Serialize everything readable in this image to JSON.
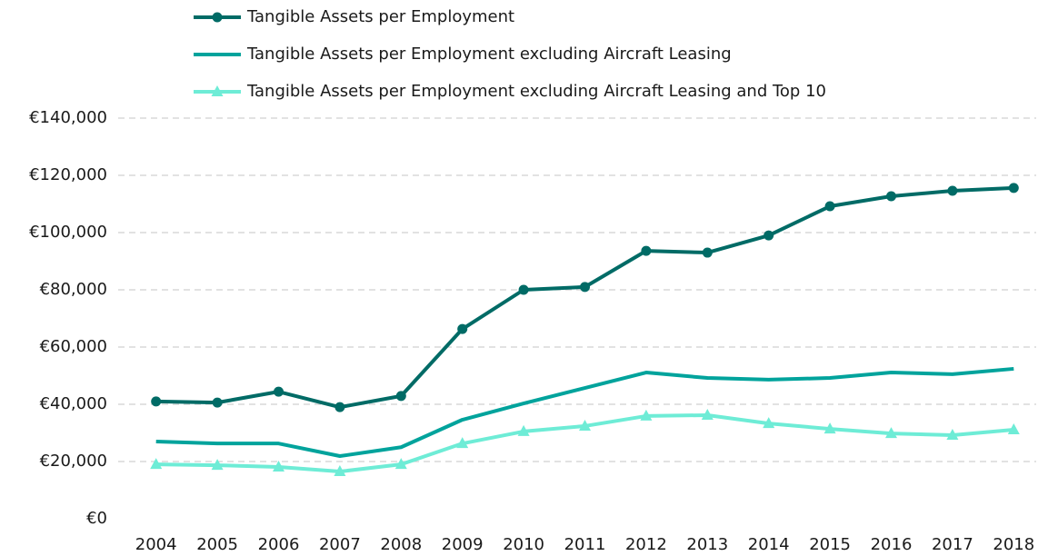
{
  "chart_data": {
    "type": "line",
    "categories": [
      "2004",
      "2005",
      "2006",
      "2007",
      "2008",
      "2009",
      "2010",
      "2011",
      "2012",
      "2013",
      "2014",
      "2015",
      "2016",
      "2017",
      "2018"
    ],
    "series": [
      {
        "name": "Tangible Assets per Employment",
        "color": "#006b66",
        "marker": "circle",
        "values": [
          41000,
          40600,
          44400,
          39000,
          42900,
          66300,
          80000,
          81000,
          93600,
          93000,
          99000,
          109200,
          112700,
          114600,
          115600
        ]
      },
      {
        "name": "Tangible Assets per Employment excluding Aircraft Leasing",
        "color": "#00a39c",
        "values": [
          27000,
          26300,
          26300,
          21900,
          25000,
          34600,
          40300,
          45700,
          51100,
          49200,
          48600,
          49200,
          51100,
          50500,
          52400
        ]
      },
      {
        "name": "Tangible Assets per Employment excluding Aircraft Leasing and Top 10",
        "color": "#6eecd6",
        "marker": "triangle",
        "values": [
          19000,
          18700,
          18100,
          16500,
          19000,
          26300,
          30500,
          32400,
          35900,
          36200,
          33300,
          31400,
          29800,
          29200,
          31100
        ]
      }
    ],
    "ylim": [
      0,
      140000
    ],
    "yticks": [
      {
        "value": 0,
        "label": "€0"
      },
      {
        "value": 20000,
        "label": "€20,000"
      },
      {
        "value": 40000,
        "label": "€40,000"
      },
      {
        "value": 60000,
        "label": "€60,000"
      },
      {
        "value": 80000,
        "label": "€80,000"
      },
      {
        "value": 100000,
        "label": "€100,000"
      },
      {
        "value": 120000,
        "label": "€120,000"
      },
      {
        "value": 140000,
        "label": "€140,000"
      }
    ],
    "grid": true,
    "legend": "top"
  }
}
